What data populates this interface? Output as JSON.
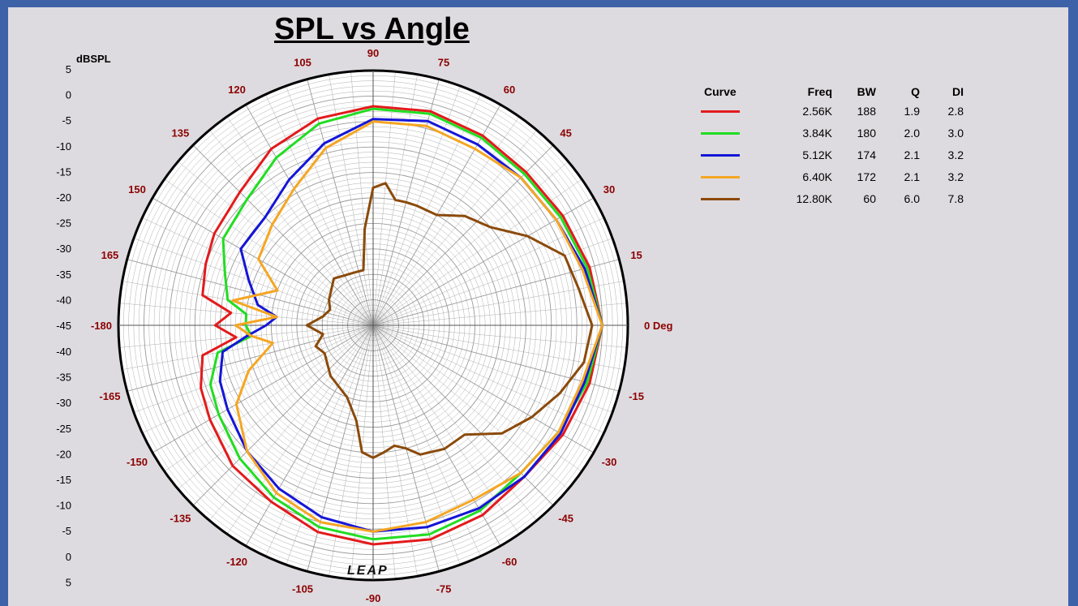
{
  "colors": {
    "page_background": "#dedbe0",
    "border": "#3d62a8",
    "angle_label": "#8b0000",
    "grid": "#9a9a9a"
  },
  "logo_text": "LEAP",
  "chart_data": {
    "type": "polar",
    "title": "SPL vs Angle",
    "radial_label": "dBSPL",
    "radial_ticks_upper": [
      "5",
      "0",
      "-5",
      "-10",
      "-15",
      "-20",
      "-25",
      "-30",
      "-35",
      "-40",
      "-45"
    ],
    "radial_ticks_lower": [
      "-40",
      "-35",
      "-30",
      "-25",
      "-20",
      "-15",
      "-10",
      "-5",
      "0",
      "5"
    ],
    "radial_range_db": [
      -45,
      5
    ],
    "angle_labels": [
      {
        "deg": 0,
        "label": "0 Deg"
      },
      {
        "deg": 15,
        "label": "15"
      },
      {
        "deg": 30,
        "label": "30"
      },
      {
        "deg": 45,
        "label": "45"
      },
      {
        "deg": 60,
        "label": "60"
      },
      {
        "deg": 75,
        "label": "75"
      },
      {
        "deg": 90,
        "label": "90"
      },
      {
        "deg": 105,
        "label": "105"
      },
      {
        "deg": 120,
        "label": "120"
      },
      {
        "deg": 135,
        "label": "135"
      },
      {
        "deg": 150,
        "label": "150"
      },
      {
        "deg": 165,
        "label": "165"
      },
      {
        "deg": 180,
        "label": "-180"
      },
      {
        "deg": -15,
        "label": "-15"
      },
      {
        "deg": -30,
        "label": "-30"
      },
      {
        "deg": -45,
        "label": "-45"
      },
      {
        "deg": -60,
        "label": "-60"
      },
      {
        "deg": -75,
        "label": "-75"
      },
      {
        "deg": -90,
        "label": "-90"
      },
      {
        "deg": -105,
        "label": "-105"
      },
      {
        "deg": -120,
        "label": "-120"
      },
      {
        "deg": -135,
        "label": "-135"
      },
      {
        "deg": -150,
        "label": "-150"
      },
      {
        "deg": -165,
        "label": "-165"
      }
    ],
    "legend_headers": {
      "curve": "Curve",
      "freq": "Freq",
      "bw": "BW",
      "q": "Q",
      "di": "DI"
    },
    "series": [
      {
        "freq": "2.56K",
        "bw": "188",
        "q": "1.9",
        "di": "2.8",
        "color": "#e31a1c",
        "angles": [
          0,
          15,
          30,
          45,
          60,
          75,
          90,
          105,
          120,
          135,
          150,
          160,
          170,
          175,
          180,
          -175,
          -170,
          -160,
          -150,
          -135,
          -120,
          -105,
          -90,
          -75,
          -60,
          -45,
          -30,
          -15
        ],
        "db": [
          0,
          -1,
          -2,
          -2.5,
          -2,
          -1.5,
          -2,
          -3,
          -5,
          -8,
          -9,
          -10,
          -11,
          -17,
          -14,
          -18,
          -11,
          -9,
          -8,
          -6,
          -5,
          -3,
          -2,
          -1.5,
          -2,
          -3,
          -2,
          -1
        ]
      },
      {
        "freq": "3.84K",
        "bw": "180",
        "q": "2.0",
        "di": "3.0",
        "color": "#22dd22",
        "angles": [
          0,
          15,
          30,
          45,
          60,
          75,
          90,
          105,
          120,
          135,
          150,
          160,
          170,
          175,
          180,
          -175,
          -170,
          -160,
          -150,
          -135,
          -120,
          -105,
          -90,
          -75,
          -60,
          -45,
          -30,
          -15
        ],
        "db": [
          0,
          -1.5,
          -2.5,
          -3,
          -2.5,
          -2,
          -2.5,
          -4,
          -7,
          -10,
          -11,
          -14,
          -16,
          -20,
          -20,
          -21,
          -14,
          -11,
          -10,
          -8,
          -6,
          -4,
          -3,
          -2.5,
          -3,
          -4,
          -3,
          -1.5
        ]
      },
      {
        "freq": "5.12K",
        "bw": "174",
        "q": "2.1",
        "di": "3.2",
        "color": "#1515d8",
        "angles": [
          0,
          15,
          30,
          45,
          60,
          75,
          90,
          105,
          120,
          135,
          150,
          160,
          170,
          175,
          180,
          -175,
          -170,
          -160,
          -150,
          -135,
          -120,
          -105,
          -90,
          -75,
          -60,
          -45,
          -30,
          -15
        ],
        "db": [
          0,
          -2,
          -3.5,
          -4,
          -4,
          -3.5,
          -4.5,
          -8,
          -12,
          -15,
          -15,
          -19,
          -22,
          -26,
          -24,
          -20,
          -15,
          -13,
          -12,
          -10,
          -8,
          -6,
          -4.5,
          -4,
          -3.5,
          -3,
          -2.5,
          -2
        ]
      },
      {
        "freq": "6.40K",
        "bw": "172",
        "q": "2.1",
        "di": "3.2",
        "color": "#f5a623",
        "angles": [
          0,
          15,
          30,
          45,
          60,
          75,
          90,
          105,
          120,
          135,
          150,
          160,
          170,
          175,
          180,
          -175,
          -170,
          -160,
          -150,
          -135,
          -120,
          -105,
          -90,
          -75,
          -60,
          -45,
          -30,
          -15
        ],
        "db": [
          0,
          -2.5,
          -3.5,
          -4,
          -5,
          -4.5,
          -5,
          -9,
          -14,
          -17,
          -19,
          -25,
          -17,
          -26,
          -18,
          -21,
          -25,
          -19,
          -14,
          -10,
          -7,
          -5,
          -4.5,
          -5,
          -5.5,
          -4,
          -3,
          -2.5
        ]
      },
      {
        "freq": "12.80K",
        "bw": "60",
        "q": "6.0",
        "di": "7.8",
        "color": "#8b4a0a",
        "angles": [
          0,
          10,
          20,
          30,
          40,
          50,
          60,
          70,
          75,
          80,
          85,
          90,
          95,
          100,
          110,
          130,
          150,
          160,
          170,
          180,
          -170,
          -160,
          -150,
          -130,
          -110,
          -100,
          -95,
          -90,
          -85,
          -80,
          -75,
          -70,
          -60,
          -50,
          -40,
          -30,
          -20,
          -10
        ],
        "db": [
          -2,
          -4,
          -5,
          -10,
          -15,
          -17,
          -20,
          -20,
          -20,
          -20,
          -17,
          -18,
          -26,
          -34,
          -34,
          -33,
          -35,
          -36,
          -35,
          -32,
          -35,
          -33,
          -34,
          -32,
          -30,
          -26,
          -20,
          -19,
          -20,
          -21,
          -20,
          -18,
          -17,
          -17,
          -12,
          -9,
          -6,
          -3
        ]
      }
    ]
  }
}
